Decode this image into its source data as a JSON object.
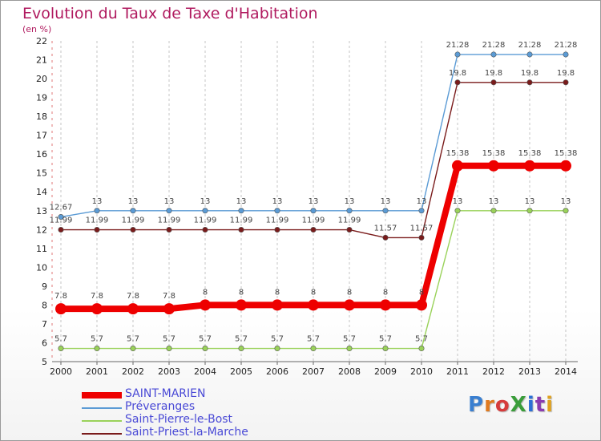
{
  "page": {
    "title": "Evolution du Taux de Taxe d'Habitation",
    "subtitle": "(en %)"
  },
  "logo": {
    "text": "ProXiti",
    "colors": [
      "#3a7fd0",
      "#e07a1f",
      "#d63b3b",
      "#3a9d3a",
      "#2c6fd6",
      "#8a3bb0",
      "#e0a21f"
    ]
  },
  "chart_data": {
    "type": "line",
    "title": "Evolution du Taux de Taxe d'Habitation",
    "ylabel": "(en %)",
    "xlabel": "",
    "x": [
      "2000",
      "2001",
      "2002",
      "2003",
      "2004",
      "2005",
      "2006",
      "2007",
      "2008",
      "2009",
      "2010",
      "2011",
      "2012",
      "2013",
      "2014"
    ],
    "y_ticks": [
      5,
      6,
      7,
      8,
      9,
      10,
      11,
      12,
      13,
      14,
      15,
      16,
      17,
      18,
      19,
      20,
      21,
      22
    ],
    "ylim": [
      5,
      22
    ],
    "grid": "vertical dashed",
    "legend_position": "bottom-left",
    "series": [
      {
        "name": "SAINT-MARIEN",
        "color": "#ee0000",
        "emphasis": true,
        "values": [
          7.8,
          7.8,
          7.8,
          7.8,
          8,
          8,
          8,
          8,
          8,
          8,
          8,
          15.38,
          15.38,
          15.38,
          15.38
        ],
        "labels": [
          "7.8",
          "7.8",
          "7.8",
          "7.8",
          "8",
          "8",
          "8",
          "8",
          "8",
          "8",
          "8",
          "15.38",
          "15.38",
          "15.38",
          "15.38"
        ]
      },
      {
        "name": "Préveranges",
        "color": "#5b9bd5",
        "emphasis": false,
        "values": [
          12.67,
          13,
          13,
          13,
          13,
          13,
          13,
          13,
          13,
          13,
          13,
          21.28,
          21.28,
          21.28,
          21.28
        ],
        "labels": [
          "12.67",
          "13",
          "13",
          "13",
          "13",
          "13",
          "13",
          "13",
          "13",
          "13",
          "13",
          "21.28",
          "21.28",
          "21.28",
          "21.28"
        ]
      },
      {
        "name": "Saint-Pierre-le-Bost",
        "color": "#9ad25a",
        "emphasis": false,
        "values": [
          5.7,
          5.7,
          5.7,
          5.7,
          5.7,
          5.7,
          5.7,
          5.7,
          5.7,
          5.7,
          5.7,
          13,
          13,
          13,
          13
        ],
        "labels": [
          "5.7",
          "5.7",
          "5.7",
          "5.7",
          "5.7",
          "5.7",
          "5.7",
          "5.7",
          "5.7",
          "5.7",
          "5.7",
          "13",
          "13",
          "13",
          "13"
        ]
      },
      {
        "name": "Saint-Priest-la-Marche",
        "color": "#7a1b1b",
        "emphasis": false,
        "values": [
          11.99,
          11.99,
          11.99,
          11.99,
          11.99,
          11.99,
          11.99,
          11.99,
          11.99,
          11.57,
          11.57,
          19.8,
          19.8,
          19.8,
          19.8
        ],
        "labels": [
          "11.99",
          "11.99",
          "11.99",
          "11.99",
          "11.99",
          "11.99",
          "11.99",
          "11.99",
          "11.99",
          "11.57",
          "11.57",
          "19.8",
          "19.8",
          "19.8",
          "19.8"
        ]
      }
    ]
  }
}
